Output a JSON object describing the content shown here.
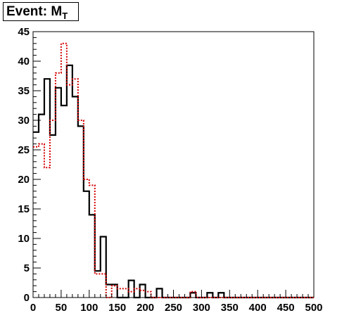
{
  "title": {
    "main": "Event: M",
    "sub": "T"
  },
  "chart_data": {
    "type": "histogram",
    "xlim": [
      0,
      500
    ],
    "ylim": [
      0,
      45
    ],
    "xticks": [
      0,
      50,
      100,
      150,
      200,
      250,
      300,
      350,
      400,
      450,
      500
    ],
    "yticks": [
      0,
      5,
      10,
      15,
      20,
      25,
      30,
      35,
      40,
      45
    ],
    "bin_width": 10,
    "series": [
      {
        "color": "#000000",
        "style": "solid",
        "values": [
          28,
          31,
          37,
          27.5,
          35.5,
          32.5,
          39.3,
          34,
          29,
          18,
          14,
          4.5,
          10.3,
          2.2,
          2.2,
          0,
          0,
          2.9,
          0,
          2.2,
          0,
          0,
          1.5,
          0,
          0,
          0,
          0,
          0,
          0.8,
          0,
          0,
          0.8,
          0,
          0.8,
          0,
          0,
          0,
          0,
          0,
          0,
          0,
          0,
          0,
          0,
          0,
          0,
          0,
          0,
          0,
          0
        ]
      },
      {
        "color": "#d40000",
        "style": "dotted",
        "values": [
          25.5,
          26,
          22,
          30,
          38,
          43,
          36,
          37,
          30,
          20,
          19,
          4,
          4,
          0,
          2,
          1.5,
          1.5,
          1,
          1.5,
          1.2,
          1,
          0,
          0,
          0,
          0,
          0,
          0,
          0,
          1,
          0,
          0,
          0,
          0,
          0,
          0,
          0,
          0,
          0,
          0,
          0,
          0,
          0,
          0,
          0,
          0,
          0,
          0,
          0,
          0,
          0
        ]
      }
    ]
  }
}
